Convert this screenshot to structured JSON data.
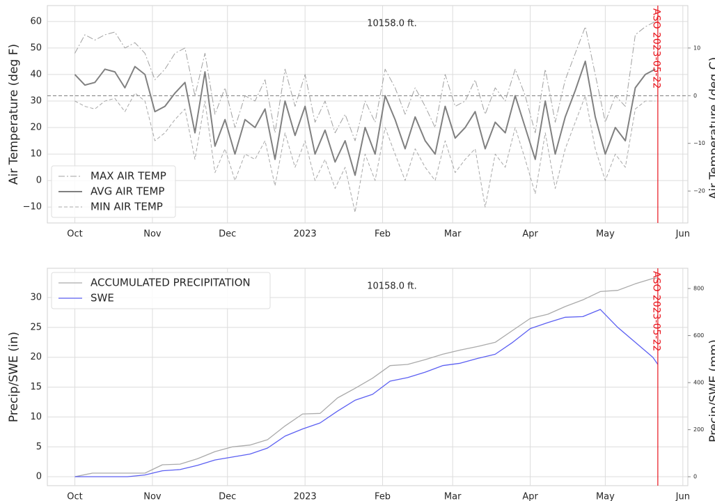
{
  "chart_data": [
    {
      "type": "line",
      "title": "10158.0 ft.",
      "ylabel": "Air Temperature (deg F)",
      "y2label": "Air Temperature (deg C)",
      "x": [
        0,
        4,
        8,
        12,
        16,
        20,
        24,
        28,
        32,
        36,
        40,
        44,
        48,
        52,
        56,
        60,
        64,
        68,
        72,
        76,
        80,
        84,
        88,
        92,
        96,
        100,
        104,
        108,
        112,
        116,
        120,
        124,
        128,
        132,
        136,
        140,
        144,
        148,
        152,
        156,
        160,
        164,
        168,
        172,
        176,
        180,
        184,
        188,
        192,
        196,
        200,
        204,
        208,
        212,
        216,
        220,
        224,
        228,
        232
      ],
      "xlim": [
        -11,
        245
      ],
      "xticks": [
        {
          "value": 0,
          "label": "Oct"
        },
        {
          "value": 31,
          "label": "Nov"
        },
        {
          "value": 61,
          "label": "Dec"
        },
        {
          "value": 92,
          "label": "2023"
        },
        {
          "value": 123,
          "label": "Feb"
        },
        {
          "value": 151,
          "label": "Mar"
        },
        {
          "value": 182,
          "label": "Apr"
        },
        {
          "value": 212,
          "label": "May"
        },
        {
          "value": 243,
          "label": "Jun"
        }
      ],
      "ylim": [
        -16,
        66
      ],
      "yticks": [
        {
          "value": -10,
          "label": "−10"
        },
        0,
        10,
        20,
        30,
        40,
        50,
        60
      ],
      "y2lim": [
        -26.7,
        18.9
      ],
      "y2ticks": [
        {
          "value": -20,
          "label": "−20"
        },
        {
          "value": -10,
          "label": "−10"
        },
        0,
        10
      ],
      "hline": 32,
      "annotation": {
        "text": "ASO 2023-05-22",
        "x": 233,
        "color": "#e8141c"
      },
      "grid": true,
      "legend": "lower left",
      "series": [
        {
          "name": "MAX AIR TEMP",
          "color": "#a0a0a0",
          "linestyle": "dashdot",
          "width": 1,
          "values": [
            48,
            55,
            53,
            55,
            56,
            50,
            52,
            48,
            38,
            42,
            48,
            50,
            32,
            48,
            25,
            35,
            20,
            32,
            30,
            38,
            18,
            42,
            28,
            40,
            22,
            30,
            18,
            25,
            15,
            30,
            22,
            42,
            35,
            25,
            35,
            28,
            20,
            40,
            28,
            30,
            38,
            25,
            35,
            30,
            42,
            32,
            18,
            42,
            22,
            38,
            48,
            58,
            40,
            22,
            32,
            28,
            55,
            58,
            60
          ]
        },
        {
          "name": "AVG AIR TEMP",
          "color": "#808080",
          "linestyle": "solid",
          "width": 2,
          "values": [
            40,
            36,
            37,
            42,
            41,
            35,
            43,
            40,
            26,
            28,
            33,
            37,
            18,
            41,
            13,
            23,
            10,
            23,
            20,
            27,
            8,
            30,
            17,
            28,
            10,
            19,
            7,
            15,
            2,
            20,
            10,
            32,
            23,
            12,
            24,
            15,
            10,
            28,
            16,
            20,
            26,
            12,
            22,
            18,
            32,
            20,
            8,
            30,
            10,
            24,
            34,
            45,
            24,
            10,
            20,
            15,
            35,
            40,
            42
          ]
        },
        {
          "name": "MIN AIR TEMP",
          "color": "#a8a8a8",
          "linestyle": "dashed",
          "width": 1,
          "values": [
            30,
            28,
            27,
            30,
            31,
            26,
            33,
            30,
            15,
            18,
            23,
            27,
            8,
            30,
            3,
            12,
            0,
            10,
            8,
            15,
            -2,
            18,
            5,
            15,
            0,
            8,
            -3,
            5,
            -12,
            10,
            0,
            20,
            10,
            0,
            12,
            5,
            0,
            15,
            3,
            8,
            12,
            -10,
            10,
            5,
            20,
            8,
            -5,
            18,
            -3,
            12,
            22,
            32,
            12,
            0,
            10,
            5,
            27,
            30,
            30
          ]
        }
      ]
    },
    {
      "type": "line",
      "title": "10158.0 ft.",
      "ylabel": "Precip/SWE (in)",
      "y2label": "Precip/SWE (mm)",
      "x": [
        0,
        7,
        14,
        21,
        28,
        35,
        42,
        49,
        56,
        63,
        70,
        77,
        84,
        91,
        98,
        105,
        112,
        119,
        126,
        133,
        140,
        147,
        154,
        161,
        168,
        175,
        182,
        189,
        196,
        203,
        210,
        217,
        224,
        231,
        233
      ],
      "xlim": [
        -11,
        245
      ],
      "xticks": [
        {
          "value": 0,
          "label": "Oct"
        },
        {
          "value": 31,
          "label": "Nov"
        },
        {
          "value": 61,
          "label": "Dec"
        },
        {
          "value": 92,
          "label": "2023"
        },
        {
          "value": 123,
          "label": "Feb"
        },
        {
          "value": 151,
          "label": "Mar"
        },
        {
          "value": 182,
          "label": "Apr"
        },
        {
          "value": 212,
          "label": "May"
        },
        {
          "value": 243,
          "label": "Jun"
        }
      ],
      "ylim": [
        -1.5,
        34.9
      ],
      "yticks": [
        0,
        5,
        10,
        15,
        20,
        25,
        30
      ],
      "y2lim": [
        -38,
        886
      ],
      "y2ticks": [
        0,
        200,
        400,
        600,
        800
      ],
      "annotation": {
        "text": "ASO 2023-05-22",
        "x": 233,
        "color": "#e8141c"
      },
      "grid": true,
      "legend": "upper left",
      "series": [
        {
          "name": "ACCUMULATED PRECIPITATION",
          "color": "#aaaaaa",
          "linestyle": "solid",
          "width": 1.3,
          "values": [
            0,
            0.6,
            0.6,
            0.6,
            0.6,
            2.0,
            2.1,
            3.0,
            4.2,
            5.0,
            5.3,
            6.2,
            8.5,
            10.5,
            10.6,
            13.2,
            14.8,
            16.5,
            18.6,
            18.8,
            19.6,
            20.5,
            21.2,
            21.8,
            22.5,
            24.5,
            26.5,
            27.2,
            28.5,
            29.6,
            31.0,
            31.2,
            32.3,
            33.2,
            33.3
          ]
        },
        {
          "name": "SWE",
          "color": "#5b5ff2",
          "linestyle": "solid",
          "width": 1.3,
          "values": [
            0,
            0,
            0,
            0,
            0.3,
            1.0,
            1.2,
            1.9,
            2.8,
            3.3,
            3.8,
            4.8,
            6.8,
            8.0,
            9.0,
            11.0,
            12.8,
            13.8,
            16.0,
            16.6,
            17.5,
            18.6,
            19.0,
            19.8,
            20.5,
            22.5,
            24.8,
            25.8,
            26.7,
            26.8,
            28.0,
            25.0,
            22.5,
            20.0,
            18.8
          ]
        }
      ]
    }
  ]
}
